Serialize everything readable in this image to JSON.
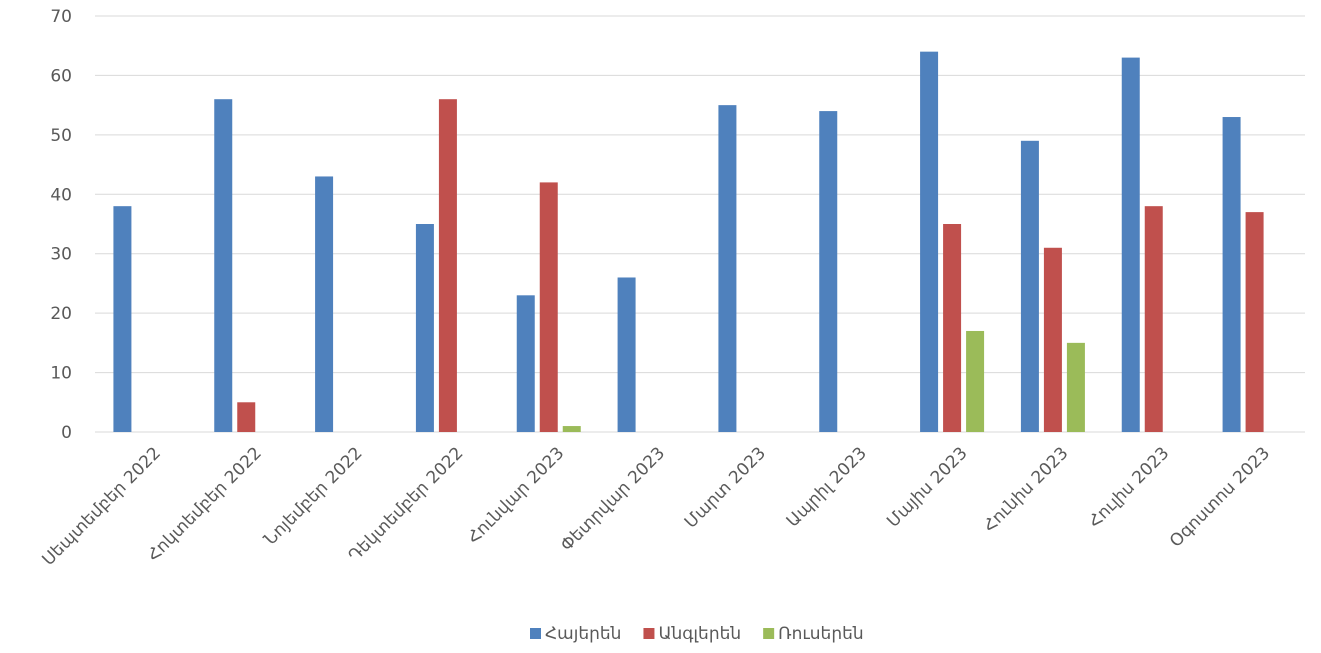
{
  "chart_data": {
    "type": "bar",
    "title": "",
    "xlabel": "",
    "ylabel": "",
    "ylim": [
      0,
      70
    ],
    "yticks": [
      0,
      10,
      20,
      30,
      40,
      50,
      60,
      70
    ],
    "grid": true,
    "legend_position": "bottom",
    "categories": [
      "Սեպտեմբեր 2022",
      "Հոկտեմբեր 2022",
      "Նոյեմբեր 2022",
      "Դեկտեմբեր 2022",
      "Հունվար 2023",
      "Փետրվար 2023",
      "Մարտ 2023",
      "Ապրիլ 2023",
      "Մայիս 2023",
      "Հունիս 2023",
      "Հուլիս 2023",
      "Օգոստոս 2023"
    ],
    "series": [
      {
        "name": "Հայերեն",
        "color": "#4f81bd",
        "values": [
          38,
          56,
          43,
          35,
          23,
          26,
          55,
          54,
          64,
          49,
          63,
          53
        ]
      },
      {
        "name": "Անգլերեն",
        "color": "#c0504d",
        "values": [
          0,
          5,
          0,
          56,
          42,
          0,
          0,
          0,
          35,
          31,
          38,
          37
        ]
      },
      {
        "name": "Ռուսերեն",
        "color": "#9bbb59",
        "values": [
          0,
          0,
          0,
          0,
          1,
          0,
          0,
          0,
          17,
          15,
          0,
          0
        ]
      }
    ]
  }
}
